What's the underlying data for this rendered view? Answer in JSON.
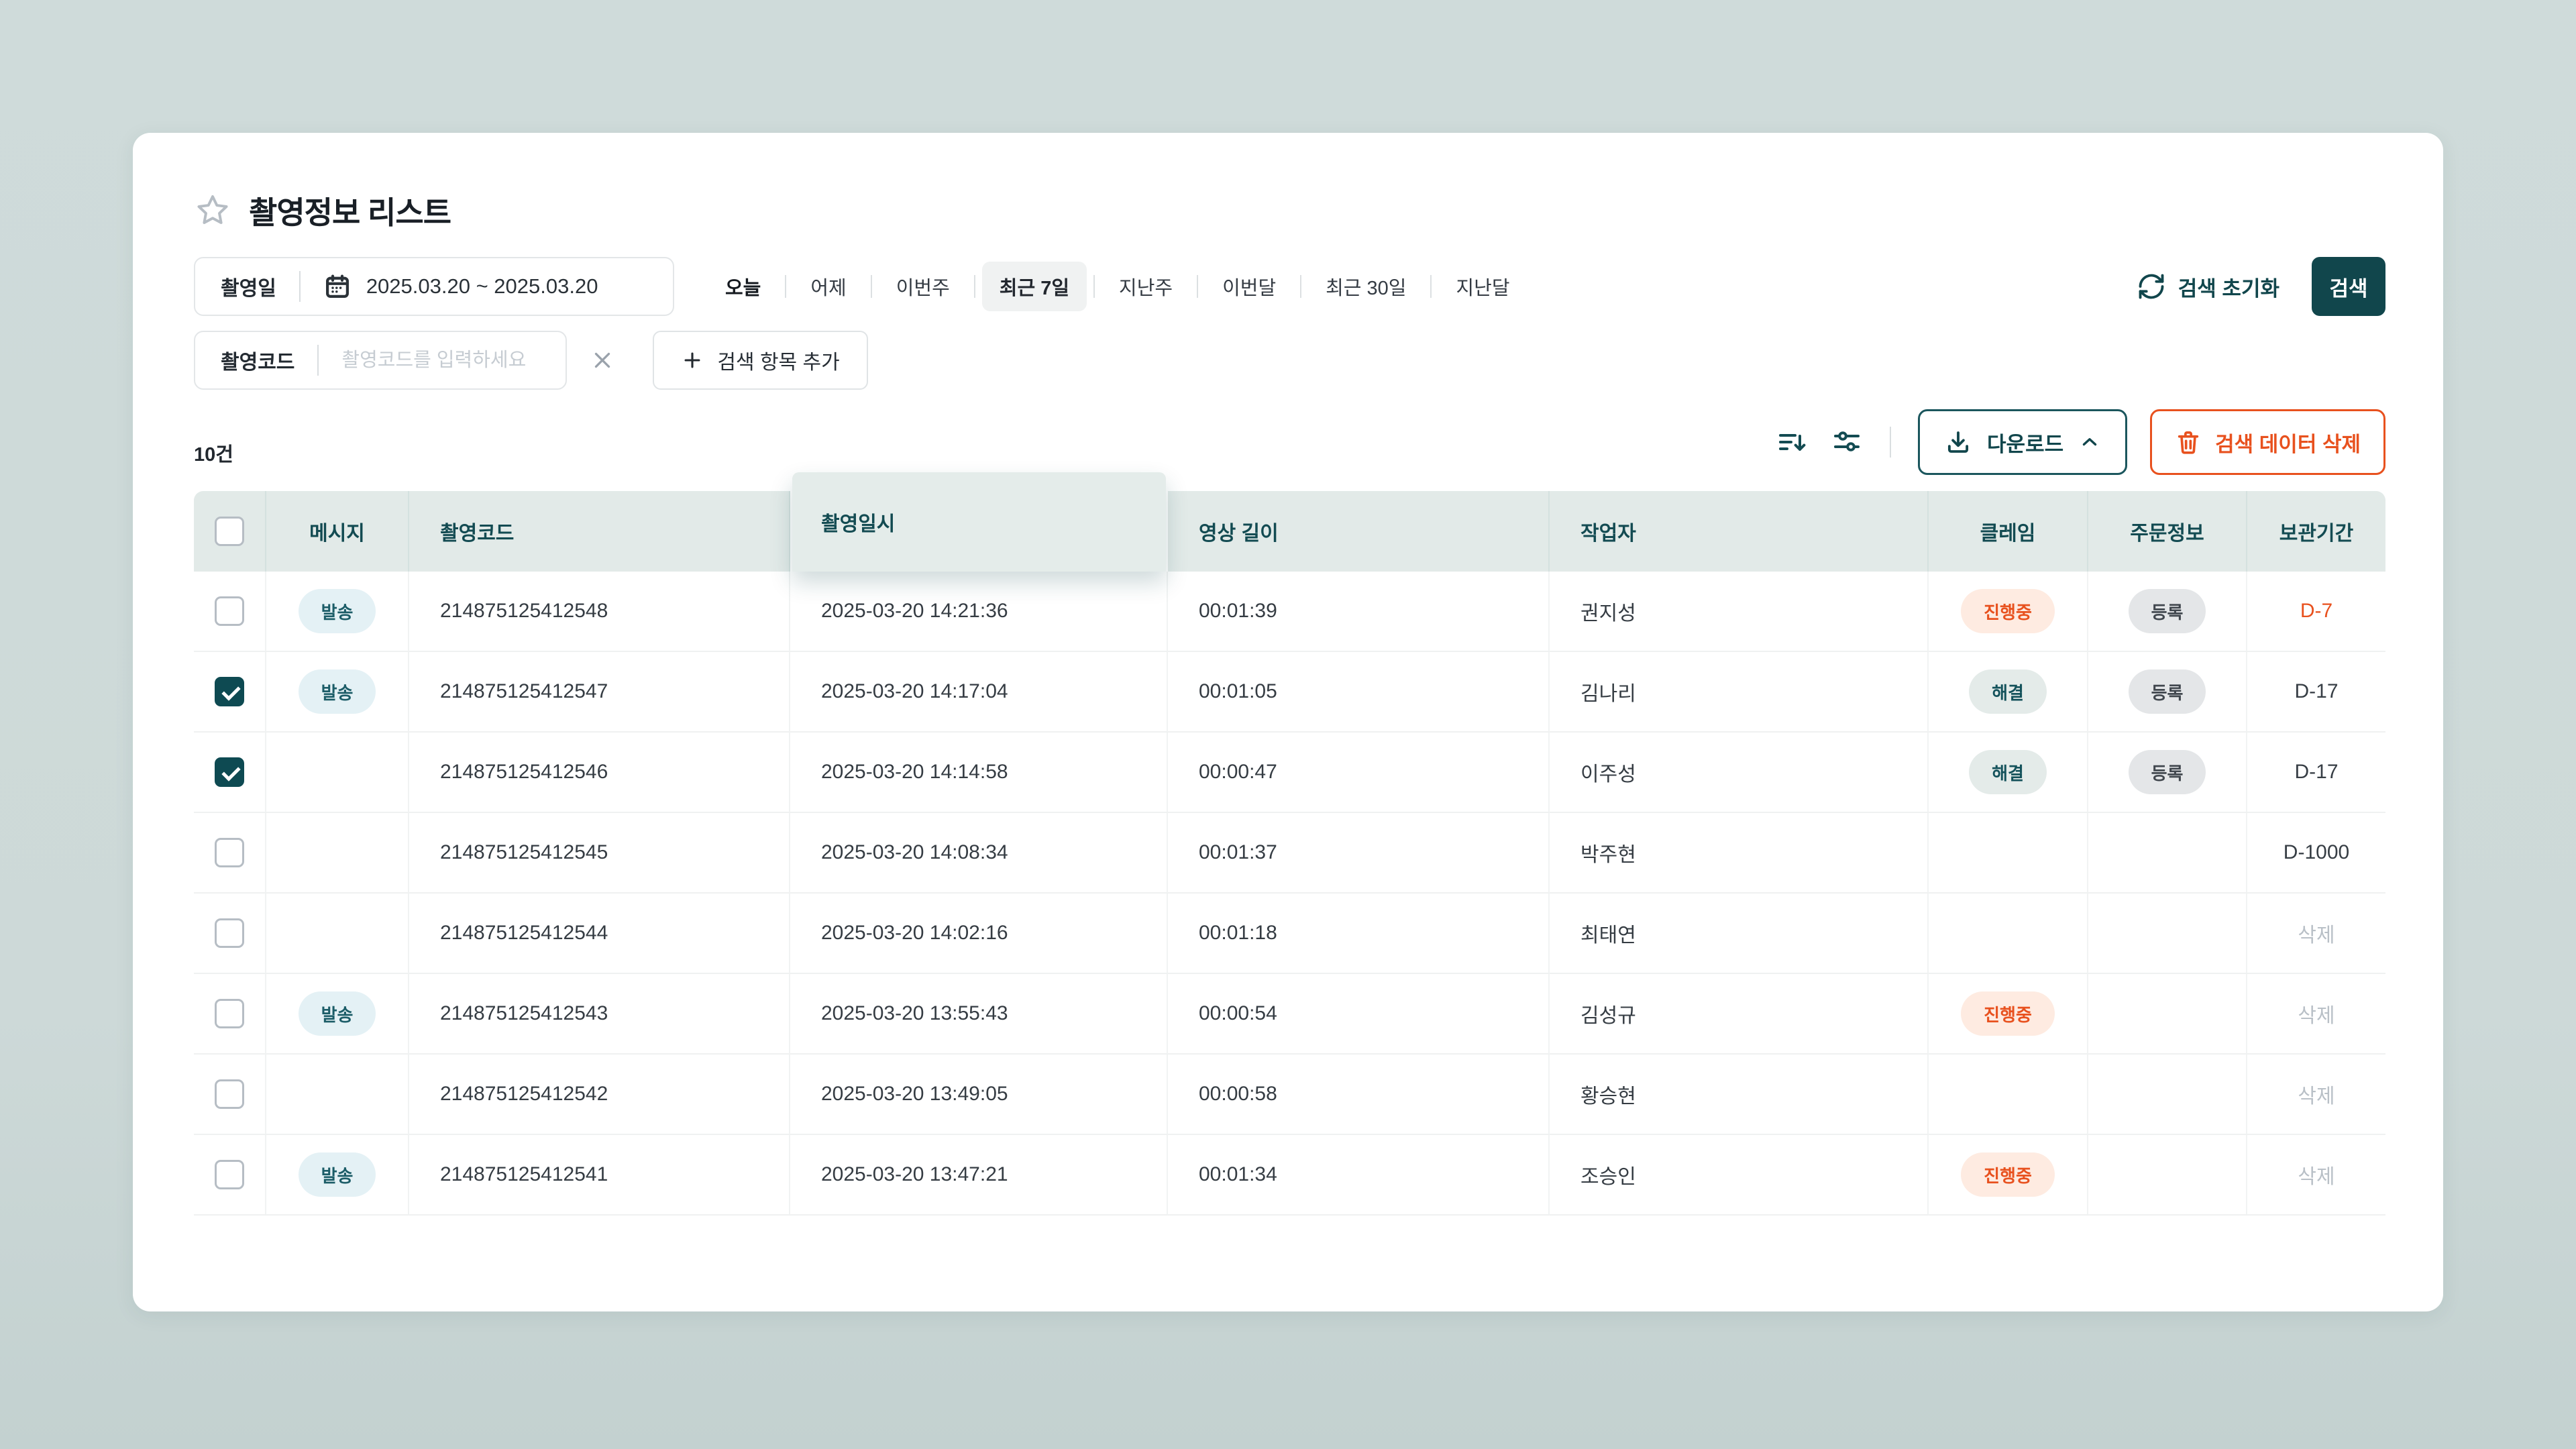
{
  "page": {
    "title": "촬영정보 리스트"
  },
  "filters": {
    "date_label": "촬영일",
    "date_value": "2025.03.20 ~ 2025.03.20",
    "quick_ranges": [
      {
        "label": "오늘",
        "state": "emphasis"
      },
      {
        "label": "어제",
        "state": "default"
      },
      {
        "label": "이번주",
        "state": "default"
      },
      {
        "label": "최근 7일",
        "state": "selected"
      },
      {
        "label": "지난주",
        "state": "default"
      },
      {
        "label": "이번달",
        "state": "default"
      },
      {
        "label": "최근 30일",
        "state": "default"
      },
      {
        "label": "지난달",
        "state": "default"
      }
    ],
    "reset_label": "검색 초기화",
    "search_label": "검색",
    "code_label": "촬영코드",
    "code_placeholder": "촬영코드를 입력하세요",
    "add_filter_label": "검색 항목 추가"
  },
  "toolbar": {
    "count": "10건",
    "download_label": "다운로드",
    "delete_label": "검색 데이터 삭제"
  },
  "table": {
    "columns": [
      "메시지",
      "촬영코드",
      "촬영일시",
      "영상 길이",
      "작업자",
      "클레임",
      "주문정보",
      "보관기간"
    ],
    "rows": [
      {
        "checked": false,
        "message": "발송",
        "code": "214875125412548",
        "shot_at": "2025-03-20 14:21:36",
        "duration": "00:01:39",
        "worker": "권지성",
        "claim": "진행중",
        "order": "등록",
        "retention": "D-7",
        "retention_class": "danger"
      },
      {
        "checked": true,
        "message": "발송",
        "code": "214875125412547",
        "shot_at": "2025-03-20 14:17:04",
        "duration": "00:01:05",
        "worker": "김나리",
        "claim": "해결",
        "order": "등록",
        "retention": "D-17",
        "retention_class": "normal"
      },
      {
        "checked": true,
        "message": "",
        "code": "214875125412546",
        "shot_at": "2025-03-20 14:14:58",
        "duration": "00:00:47",
        "worker": "이주성",
        "claim": "해결",
        "order": "등록",
        "retention": "D-17",
        "retention_class": "normal"
      },
      {
        "checked": false,
        "message": "",
        "code": "214875125412545",
        "shot_at": "2025-03-20 14:08:34",
        "duration": "00:01:37",
        "worker": "박주현",
        "claim": "",
        "order": "",
        "retention": "D-1000",
        "retention_class": "normal"
      },
      {
        "checked": false,
        "message": "",
        "code": "214875125412544",
        "shot_at": "2025-03-20 14:02:16",
        "duration": "00:01:18",
        "worker": "최태연",
        "claim": "",
        "order": "",
        "retention": "삭제",
        "retention_class": "muted"
      },
      {
        "checked": false,
        "message": "발송",
        "code": "214875125412543",
        "shot_at": "2025-03-20 13:55:43",
        "duration": "00:00:54",
        "worker": "김성규",
        "claim": "진행중",
        "order": "",
        "retention": "삭제",
        "retention_class": "muted"
      },
      {
        "checked": false,
        "message": "",
        "code": "214875125412542",
        "shot_at": "2025-03-20 13:49:05",
        "duration": "00:00:58",
        "worker": "황승현",
        "claim": "",
        "order": "",
        "retention": "삭제",
        "retention_class": "muted"
      },
      {
        "checked": false,
        "message": "발송",
        "code": "214875125412541",
        "shot_at": "2025-03-20 13:47:21",
        "duration": "00:01:34",
        "worker": "조승인",
        "claim": "진행중",
        "order": "",
        "retention": "삭제",
        "retention_class": "muted"
      }
    ]
  },
  "colors": {
    "accent": "#11464c",
    "danger": "#e8511e",
    "page_bg": "#cdd9d8",
    "header_bg": "#e2eae8",
    "badge_send_bg": "#e4f1f5",
    "badge_progress_bg": "#feebe1",
    "badge_resolved_bg": "#e4ebe9",
    "badge_order_bg": "#e4e6e8",
    "retention_muted": "#b9c0c7"
  },
  "icons": {
    "star": "outline-star",
    "calendar": "calendar-grid",
    "reset": "refresh-arrows",
    "close": "x-mark",
    "add": "plus",
    "sort": "sort-descending",
    "filter": "sliders",
    "download": "download-tray",
    "expand": "chevron-up",
    "delete": "trash-can",
    "checkbox": "check-mark"
  }
}
